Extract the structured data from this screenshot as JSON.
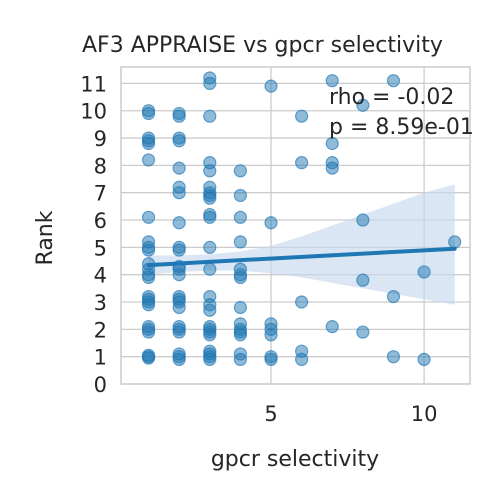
{
  "chart_data": {
    "type": "scatter",
    "title": "AF3 APPRAISE vs gpcr selectivity",
    "xlabel": "gpcr selectivity",
    "ylabel": "Rank",
    "xlim": [
      0.1,
      11.5
    ],
    "ylim": [
      0,
      11.6
    ],
    "x_ticks": [
      5,
      10
    ],
    "y_ticks": [
      0,
      1,
      2,
      3,
      4,
      5,
      6,
      7,
      8,
      9,
      10,
      11
    ],
    "grid": true,
    "colors": {
      "point": "#1f77b4",
      "line": "#1f77b4",
      "band": "#c6d9ec",
      "grid": "#cccccc",
      "frame": "#cccccc"
    },
    "annotations": [
      "rho = -0.02",
      "p = 8.59e-01"
    ],
    "regression": {
      "x": [
        1,
        11
      ],
      "y": [
        4.35,
        4.95
      ]
    },
    "band": {
      "x": [
        1,
        2,
        3,
        4,
        5,
        6,
        7,
        8,
        9,
        10,
        11
      ],
      "lower": [
        4.0,
        4.1,
        4.15,
        4.15,
        4.05,
        3.9,
        3.7,
        3.5,
        3.3,
        3.1,
        2.9
      ],
      "upper": [
        4.7,
        4.7,
        4.75,
        4.85,
        5.05,
        5.4,
        5.8,
        6.2,
        6.6,
        7.0,
        7.3
      ]
    },
    "points": [
      [
        1,
        10.0
      ],
      [
        1,
        9.9
      ],
      [
        1,
        9.0
      ],
      [
        1,
        8.9
      ],
      [
        1,
        8.8
      ],
      [
        1,
        8.2
      ],
      [
        1,
        6.1
      ],
      [
        1,
        5.2
      ],
      [
        1,
        5.0
      ],
      [
        1,
        4.9
      ],
      [
        1,
        4.4
      ],
      [
        1,
        4.2
      ],
      [
        1,
        4.0
      ],
      [
        1,
        3.9
      ],
      [
        1,
        3.2
      ],
      [
        1,
        3.1
      ],
      [
        1,
        3.0
      ],
      [
        1,
        2.9
      ],
      [
        1,
        2.1
      ],
      [
        1,
        2.0
      ],
      [
        1,
        1.9
      ],
      [
        1,
        1.0
      ],
      [
        1,
        0.95
      ],
      [
        1,
        1.05
      ],
      [
        2,
        9.9
      ],
      [
        2,
        9.8
      ],
      [
        2,
        9.0
      ],
      [
        2,
        8.9
      ],
      [
        2,
        7.9
      ],
      [
        2,
        7.2
      ],
      [
        2,
        7.0
      ],
      [
        2,
        5.9
      ],
      [
        2,
        5.0
      ],
      [
        2,
        4.9
      ],
      [
        2,
        4.3
      ],
      [
        2,
        4.2
      ],
      [
        2,
        4.0
      ],
      [
        2,
        3.2
      ],
      [
        2,
        3.1
      ],
      [
        2,
        3.0
      ],
      [
        2,
        2.8
      ],
      [
        2,
        2.1
      ],
      [
        2,
        2.0
      ],
      [
        2,
        1.9
      ],
      [
        2,
        1.1
      ],
      [
        2,
        1.0
      ],
      [
        2,
        0.9
      ],
      [
        3,
        11.2
      ],
      [
        3,
        11.0
      ],
      [
        3,
        9.8
      ],
      [
        3,
        8.1
      ],
      [
        3,
        7.8
      ],
      [
        3,
        7.2
      ],
      [
        3,
        7.0
      ],
      [
        3,
        6.9
      ],
      [
        3,
        6.8
      ],
      [
        3,
        6.2
      ],
      [
        3,
        6.1
      ],
      [
        3,
        5.0
      ],
      [
        3,
        4.2
      ],
      [
        3,
        3.2
      ],
      [
        3,
        2.9
      ],
      [
        3,
        2.7
      ],
      [
        3,
        2.1
      ],
      [
        3,
        2.0
      ],
      [
        3,
        1.9
      ],
      [
        3,
        1.8
      ],
      [
        3,
        1.2
      ],
      [
        3,
        1.1
      ],
      [
        3,
        1.0
      ],
      [
        3,
        0.9
      ],
      [
        4,
        7.8
      ],
      [
        4,
        6.9
      ],
      [
        4,
        6.1
      ],
      [
        4,
        5.2
      ],
      [
        4,
        4.2
      ],
      [
        4,
        4.0
      ],
      [
        4,
        3.9
      ],
      [
        4,
        2.8
      ],
      [
        4,
        2.2
      ],
      [
        4,
        2.0
      ],
      [
        4,
        1.9
      ],
      [
        4,
        1.8
      ],
      [
        4,
        1.1
      ],
      [
        4,
        0.9
      ],
      [
        5,
        10.9
      ],
      [
        5,
        5.9
      ],
      [
        5,
        2.2
      ],
      [
        5,
        2.0
      ],
      [
        5,
        1.8
      ],
      [
        5,
        1.0
      ],
      [
        5,
        0.9
      ],
      [
        6,
        9.8
      ],
      [
        6,
        8.1
      ],
      [
        6,
        3.0
      ],
      [
        6,
        1.2
      ],
      [
        6,
        0.9
      ],
      [
        7,
        11.1
      ],
      [
        7,
        8.8
      ],
      [
        7,
        8.1
      ],
      [
        7,
        7.9
      ],
      [
        7,
        2.1
      ],
      [
        8,
        10.2
      ],
      [
        8,
        6.0
      ],
      [
        8,
        3.8
      ],
      [
        8,
        1.9
      ],
      [
        9,
        11.1
      ],
      [
        9,
        3.2
      ],
      [
        9,
        1.0
      ],
      [
        10,
        4.1
      ],
      [
        10,
        0.9
      ],
      [
        11,
        5.2
      ]
    ]
  }
}
